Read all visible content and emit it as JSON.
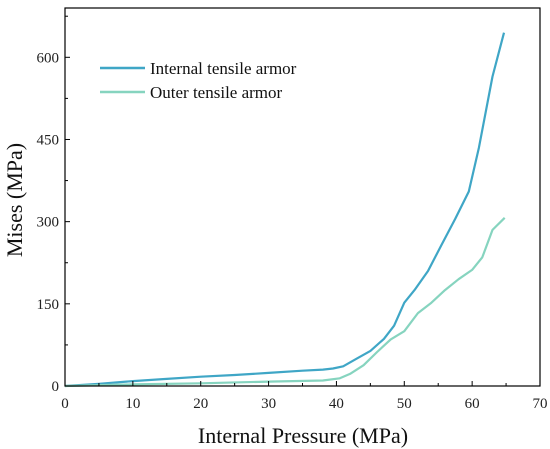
{
  "chart_data": {
    "type": "line",
    "title": "",
    "xlabel": "Internal Pressure (MPa)",
    "ylabel": "Mises (MPa)",
    "xlim": [
      0,
      70
    ],
    "ylim": [
      0,
      690
    ],
    "xticks": [
      0,
      10,
      20,
      30,
      40,
      50,
      60,
      70
    ],
    "yticks": [
      0,
      150,
      300,
      450,
      600
    ],
    "grid": false,
    "legend_position": "top-left",
    "series": [
      {
        "name": "Internal tensile armor",
        "color": "#3fa6c6",
        "x": [
          0,
          5,
          10,
          15,
          20,
          25,
          30,
          35,
          38,
          39.5,
          41,
          43,
          45,
          47,
          48.5,
          50,
          51.5,
          53.5,
          55.5,
          57.5,
          59.5,
          61,
          63,
          64.7
        ],
        "y": [
          0,
          4,
          9,
          13,
          17,
          20,
          24,
          28,
          30,
          32,
          36,
          50,
          64,
          86,
          110,
          152,
          175,
          210,
          258,
          305,
          355,
          435,
          565,
          645
        ]
      },
      {
        "name": "Outer tensile armor",
        "color": "#86d4bf",
        "x": [
          0,
          10,
          20,
          30,
          38,
          40.5,
          42,
          44,
          46,
          48,
          50,
          52,
          54,
          56,
          58,
          60,
          61.5,
          63,
          64.8
        ],
        "y": [
          0,
          3,
          5,
          8,
          10,
          14,
          22,
          38,
          62,
          85,
          100,
          133,
          152,
          175,
          195,
          212,
          235,
          285,
          307
        ]
      }
    ]
  }
}
